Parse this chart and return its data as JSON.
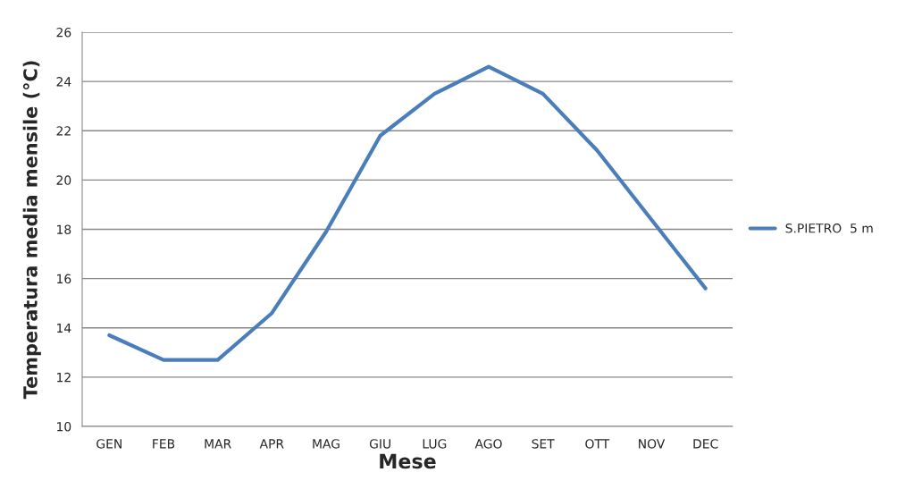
{
  "chart_data": {
    "type": "line",
    "xlabel": "Mese",
    "ylabel": "Temperatura media mensile (°C)",
    "categories": [
      "GEN",
      "FEB",
      "MAR",
      "APR",
      "MAG",
      "GIU",
      "LUG",
      "AGO",
      "SET",
      "OTT",
      "NOV",
      "DEC"
    ],
    "series": [
      {
        "name": "S.PIETRO  5 m",
        "color": "#4a7ebb",
        "values": [
          13.7,
          12.7,
          12.7,
          14.6,
          17.9,
          21.8,
          23.5,
          24.6,
          23.5,
          21.2,
          18.4,
          15.6
        ]
      }
    ],
    "ylim": [
      10,
      26
    ],
    "yticks": [
      10,
      12,
      14,
      16,
      18,
      20,
      22,
      24,
      26
    ],
    "grid": "y",
    "legend": "right",
    "marker": "none",
    "line_style": "solid"
  }
}
